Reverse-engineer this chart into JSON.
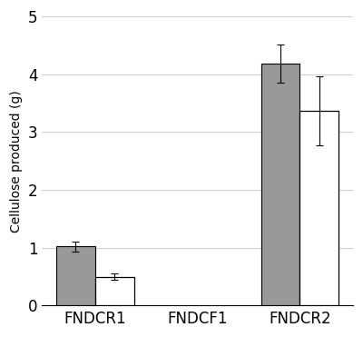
{
  "groups": [
    "FNDCR1",
    "FNDCF1",
    "FNDCR2"
  ],
  "gray_values": [
    1.02,
    0.0,
    4.18
  ],
  "white_values": [
    0.5,
    0.0,
    3.37
  ],
  "gray_errors": [
    0.08,
    0.0,
    0.33
  ],
  "white_errors": [
    0.06,
    0.0,
    0.6
  ],
  "gray_color": "#999999",
  "white_color": "#ffffff",
  "bar_edge_color": "#000000",
  "bar_width": 0.38,
  "ylabel": "Cellulose produced (g)",
  "ylim": [
    0,
    5
  ],
  "yticks": [
    0,
    1,
    2,
    3,
    4,
    5
  ],
  "background_color": "#ffffff",
  "grid_color": "#d0d0d0",
  "xlabel_fontsize": 12,
  "ylabel_fontsize": 10,
  "tick_fontsize": 12
}
